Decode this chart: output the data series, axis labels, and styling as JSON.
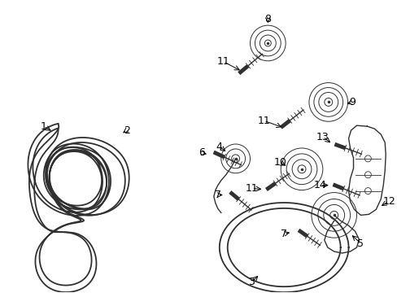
{
  "bg_color": "#ffffff",
  "line_color": "#2a2a2a",
  "label_color": "#000000",
  "font_size": 9,
  "arrow_color": "#000000",
  "lw_belt": 1.4,
  "lw_part": 1.0,
  "lw_thin": 0.7
}
